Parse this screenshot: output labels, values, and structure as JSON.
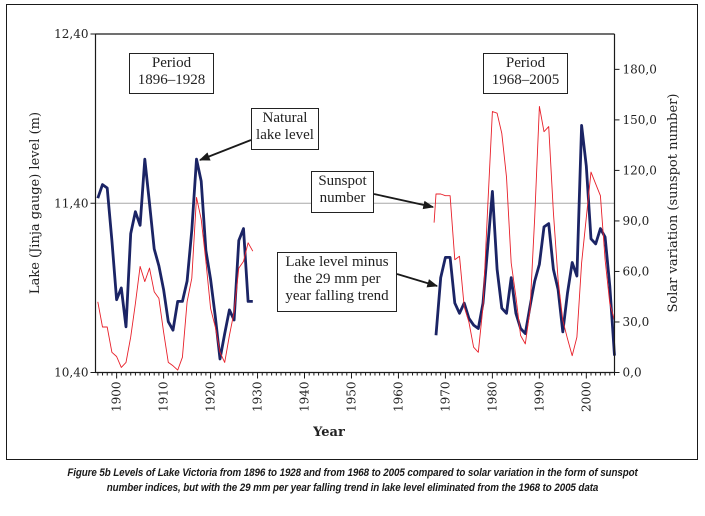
{
  "chart_data": {
    "type": "line",
    "xlabel": "Year",
    "ylabel_left": "Lake (Jinja gauge) level (m)",
    "ylabel_right": "Solar variation (sunspot number)",
    "xlim": [
      1895.5,
      2006
    ],
    "ylim_left": [
      10.4,
      12.4
    ],
    "ylim_right": [
      0,
      201
    ],
    "grid": "single horizontal reference line at 11,40",
    "reference_line_left": 11.4,
    "x_ticks": [
      "1900",
      "1910",
      "1920",
      "1930",
      "1940",
      "1950",
      "1960",
      "1970",
      "1980",
      "1990",
      "2000"
    ],
    "x_tick_values": [
      1900,
      1910,
      1920,
      1930,
      1940,
      1950,
      1960,
      1970,
      1980,
      1990,
      2000
    ],
    "y_left_ticks": [
      "10,40",
      "11,40",
      "12,40"
    ],
    "y_left_tick_values": [
      10.4,
      11.4,
      12.4
    ],
    "y_right_ticks": [
      "0,0",
      "30,0",
      "60,0",
      "90,0",
      "120,0",
      "150,0",
      "180,0"
    ],
    "y_right_tick_values": [
      0,
      30,
      60,
      90,
      120,
      150,
      180
    ],
    "series": [
      {
        "name": "Natural lake level (1896–1928)",
        "axis": "left",
        "color": "#1b2465",
        "x": [
          1896,
          1897,
          1898,
          1899,
          1900,
          1901,
          1902,
          1903,
          1904,
          1905,
          1906,
          1907,
          1908,
          1909,
          1910,
          1911,
          1912,
          1913,
          1914,
          1915,
          1916,
          1917,
          1918,
          1919,
          1920,
          1921,
          1922,
          1923,
          1924,
          1925,
          1926,
          1927,
          1928,
          1929
        ],
        "values": [
          11.43,
          11.51,
          11.49,
          11.18,
          10.83,
          10.9,
          10.67,
          11.22,
          11.35,
          11.27,
          11.66,
          11.4,
          11.13,
          11.03,
          10.89,
          10.7,
          10.65,
          10.82,
          10.82,
          10.94,
          11.24,
          11.66,
          11.53,
          11.12,
          10.95,
          10.73,
          10.48,
          10.63,
          10.77,
          10.71,
          11.18,
          11.25,
          10.82,
          10.82
        ]
      },
      {
        "name": "Sunspot number (1896–1928)",
        "axis": "right",
        "color": "#e8202a",
        "x": [
          1896,
          1897,
          1898,
          1899,
          1900,
          1901,
          1902,
          1903,
          1904,
          1905,
          1906,
          1907,
          1908,
          1909,
          1910,
          1911,
          1912,
          1913,
          1914,
          1915,
          1916,
          1917,
          1918,
          1919,
          1920,
          1921,
          1922,
          1923,
          1924,
          1925,
          1926,
          1927,
          1928,
          1929
        ],
        "values": [
          42,
          27,
          27,
          12,
          9.5,
          3,
          6,
          21,
          41,
          63,
          54,
          62,
          48,
          44,
          24,
          6,
          4,
          1.4,
          9,
          42,
          56,
          104,
          91,
          66,
          38,
          27,
          12,
          6,
          22,
          36,
          62,
          66,
          77,
          72
        ]
      },
      {
        "name": "Lake level minus the 29 mm per year falling trend (1968–2005)",
        "axis": "left",
        "color": "#1b2465",
        "x": [
          1968,
          1969,
          1970,
          1971,
          1972,
          1973,
          1974,
          1975,
          1976,
          1977,
          1978,
          1979,
          1980,
          1981,
          1982,
          1983,
          1984,
          1985,
          1986,
          1987,
          1988,
          1989,
          1990,
          1991,
          1992,
          1993,
          1994,
          1995,
          1996,
          1997,
          1998,
          1999,
          2000,
          2001,
          2002,
          2003,
          2004,
          2005,
          2006
        ],
        "values": [
          10.62,
          10.96,
          11.08,
          11.08,
          10.81,
          10.75,
          10.81,
          10.72,
          10.68,
          10.66,
          10.81,
          11.14,
          11.47,
          11.01,
          10.78,
          10.75,
          10.96,
          10.75,
          10.66,
          10.63,
          10.79,
          10.94,
          11.04,
          11.26,
          11.28,
          11.01,
          10.89,
          10.64,
          10.87,
          11.05,
          10.97,
          11.86,
          11.62,
          11.19,
          11.16,
          11.25,
          11.2,
          10.91,
          10.5
        ]
      },
      {
        "name": "Sunspot number (1968–2005)",
        "axis": "right",
        "color": "#e8202a",
        "x": [
          1967.6,
          1968,
          1969,
          1970,
          1971,
          1972,
          1973,
          1974,
          1975,
          1976,
          1977,
          1978,
          1979,
          1980,
          1981,
          1982,
          1983,
          1984,
          1985,
          1986,
          1987,
          1988,
          1989,
          1990,
          1991,
          1992,
          1993,
          1994,
          1995,
          1996,
          1997,
          1998,
          1999,
          2000,
          2001,
          2002,
          2003,
          2004,
          2005,
          2006
        ],
        "values": [
          89,
          106,
          106,
          105,
          105,
          67,
          69,
          39,
          30,
          15,
          12,
          39,
          98,
          155,
          154,
          142,
          116,
          65,
          45,
          22,
          17,
          37,
          92,
          158,
          143,
          146,
          95,
          55,
          31,
          20,
          10,
          21,
          65,
          92,
          119,
          112,
          105,
          67,
          41,
          31
        ]
      }
    ],
    "annotations": [
      {
        "id": "period1",
        "lines": [
          "Period",
          "1896–1928"
        ]
      },
      {
        "id": "period2",
        "lines": [
          "Period",
          "1968–2005"
        ]
      },
      {
        "id": "natural",
        "lines": [
          "Natural",
          "lake level"
        ],
        "points_to": "Natural lake level peak near 1917"
      },
      {
        "id": "sunspot",
        "lines": [
          "Sunspot",
          "number"
        ],
        "points_to": "Sunspot number series start 1968"
      },
      {
        "id": "minus",
        "lines": [
          "Lake level minus",
          "the 29 mm per",
          "year falling trend"
        ],
        "points_to": "Detrended lake level series 1968"
      }
    ]
  },
  "caption": {
    "line1": "Figure 5b Levels of Lake Victoria from 1896 to 1928 and from 1968 to 2005 compared to solar variation in the form of sunspot",
    "line2": "number indices, but with the 29 mm per year falling trend in lake level eliminated from the 1968 to 2005 data"
  }
}
